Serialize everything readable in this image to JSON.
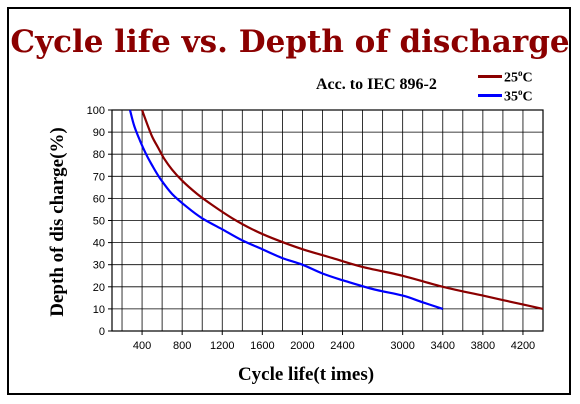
{
  "chart_data": {
    "type": "line",
    "title": "Cycle life vs. Depth of discharge",
    "annotation": "Acc. to IEC 896-2",
    "xlabel": "Cycle life(t imes)",
    "ylabel": "Depth of dis charge(%)",
    "xlim": [
      100,
      4400
    ],
    "ylim": [
      0,
      100
    ],
    "x_ticks": [
      400,
      800,
      1200,
      1600,
      2000,
      2400,
      3000,
      3400,
      3800,
      4200
    ],
    "y_ticks": [
      0,
      10,
      20,
      30,
      40,
      50,
      60,
      70,
      80,
      90,
      100
    ],
    "grid": true,
    "legend_position": "top-right",
    "series": [
      {
        "name": "25ºC",
        "color": "#8b0000",
        "x": [
          400,
          440,
          500,
          560,
          620,
          700,
          800,
          950,
          1100,
          1300,
          1500,
          1700,
          2000,
          2300,
          2600,
          3000,
          3400,
          3800,
          4100,
          4400
        ],
        "y": [
          100,
          95,
          88,
          83,
          78,
          73,
          68,
          62,
          57,
          51,
          46,
          42,
          37,
          33,
          29,
          25,
          20,
          16,
          13,
          10
        ]
      },
      {
        "name": "35ºC",
        "color": "#0000ff",
        "x": [
          280,
          320,
          380,
          440,
          500,
          580,
          700,
          850,
          1000,
          1200,
          1400,
          1600,
          1800,
          2000,
          2200,
          2400,
          2700,
          3000,
          3200,
          3400
        ],
        "y": [
          100,
          93,
          86,
          80,
          75,
          69,
          62,
          56,
          51,
          46,
          41,
          37,
          33,
          30,
          26,
          23,
          19,
          16,
          13,
          10
        ]
      }
    ],
    "series_labels": {
      "s0_base": "25",
      "s0_deg": "o",
      "s0_unit": "C",
      "s1_base": "35",
      "s1_deg": "o",
      "s1_unit": "C"
    }
  }
}
